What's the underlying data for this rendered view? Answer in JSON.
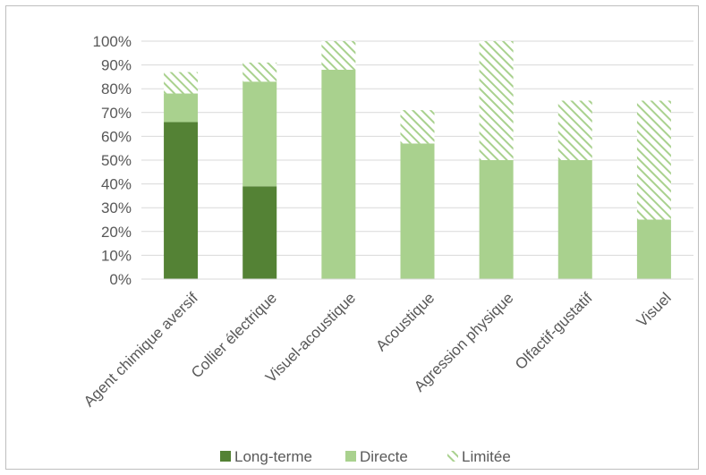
{
  "chart_data": {
    "type": "bar",
    "stacked": true,
    "categories": [
      "Agent chimique aversif",
      "Collier électrique",
      "Visuel-acoustique",
      "Acoustique",
      "Agression physique",
      "Olfactif-gustatif",
      "Visuel"
    ],
    "series": [
      {
        "name": "Long-terme",
        "values": [
          66,
          39,
          0,
          0,
          0,
          0,
          0
        ],
        "color": "#548235",
        "pattern": "solid"
      },
      {
        "name": "Directe",
        "values": [
          12,
          44,
          88,
          57,
          50,
          50,
          25
        ],
        "color": "#a9d18e",
        "pattern": "solid"
      },
      {
        "name": "Limitée",
        "values": [
          9,
          8,
          12,
          14,
          50,
          25,
          50
        ],
        "color": "#a9d18e",
        "pattern": "diagonal-hatch"
      }
    ],
    "yticks": [
      "0%",
      "10%",
      "20%",
      "30%",
      "40%",
      "50%",
      "60%",
      "70%",
      "80%",
      "90%",
      "100%"
    ],
    "ylim": [
      0,
      100
    ],
    "grid": true,
    "legend_position": "bottom"
  }
}
